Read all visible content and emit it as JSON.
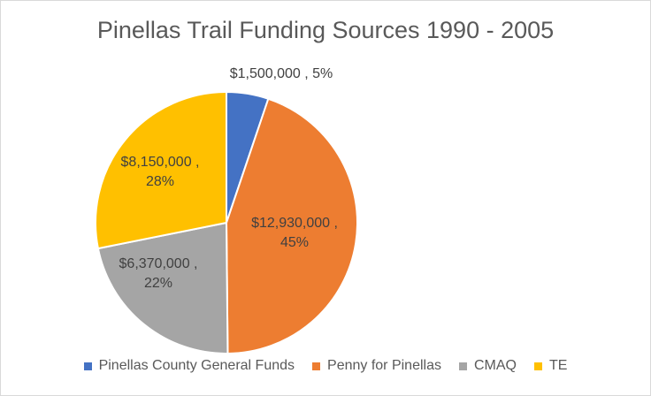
{
  "chart_data": {
    "type": "pie",
    "title": "Pinellas Trail Funding Sources 1990 - 2005",
    "slices": [
      {
        "name": "Pinellas County General Funds",
        "value": 1500000,
        "label_value": "$1,500,000",
        "percent": "5%",
        "color": "#4472c4"
      },
      {
        "name": "Penny for Pinellas",
        "value": 12930000,
        "label_value": "$12,930,000",
        "percent": "45%",
        "color": "#ed7d31"
      },
      {
        "name": "CMAQ",
        "value": 6370000,
        "label_value": "$6,370,000",
        "percent": "22%",
        "color": "#a5a5a5"
      },
      {
        "name": "TE",
        "value": 8150000,
        "label_value": "$8,150,000",
        "percent": "28%",
        "color": "#ffc000"
      }
    ],
    "legend_position": "bottom"
  }
}
